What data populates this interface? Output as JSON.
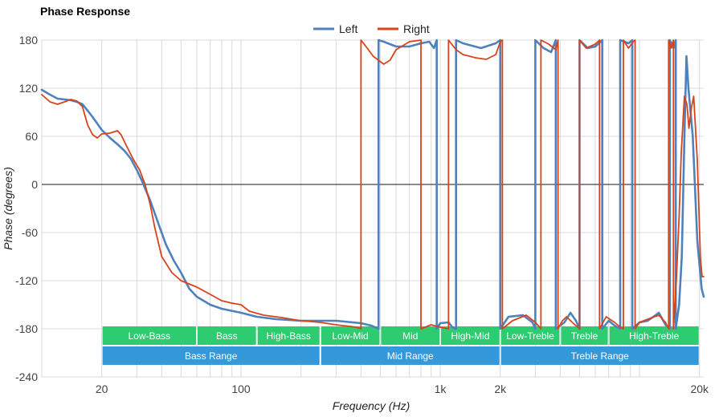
{
  "chart_data": {
    "type": "line",
    "title": "Phase Response",
    "xlabel": "Frequency (Hz)",
    "ylabel": "Phase (degrees)",
    "x_scale": "log",
    "xlim": [
      10,
      21000
    ],
    "ylim": [
      -240,
      180
    ],
    "grid": true,
    "legend_position": "top-center",
    "y_ticks": [
      180,
      120,
      60,
      0,
      -60,
      -120,
      -180,
      -240
    ],
    "x_tick_labels": [
      {
        "value": 20,
        "label": "20"
      },
      {
        "value": 100,
        "label": "100"
      },
      {
        "value": 1000,
        "label": "1k"
      },
      {
        "value": 2000,
        "label": "2k"
      },
      {
        "value": 20000,
        "label": "20k"
      }
    ],
    "series": [
      {
        "name": "Left",
        "color": "#4f81bd",
        "points": [
          [
            10,
            118
          ],
          [
            11,
            112
          ],
          [
            12,
            107
          ],
          [
            13,
            106
          ],
          [
            14,
            105
          ],
          [
            15,
            103
          ],
          [
            16,
            100
          ],
          [
            17,
            92
          ],
          [
            18,
            84
          ],
          [
            20,
            68
          ],
          [
            22,
            58
          ],
          [
            24,
            50
          ],
          [
            26,
            42
          ],
          [
            28,
            32
          ],
          [
            30,
            18
          ],
          [
            32,
            3
          ],
          [
            35,
            -20
          ],
          [
            38,
            -45
          ],
          [
            42,
            -75
          ],
          [
            46,
            -95
          ],
          [
            50,
            -110
          ],
          [
            55,
            -130
          ],
          [
            60,
            -140
          ],
          [
            70,
            -150
          ],
          [
            80,
            -155
          ],
          [
            100,
            -160
          ],
          [
            120,
            -165
          ],
          [
            150,
            -168
          ],
          [
            200,
            -170
          ],
          [
            250,
            -170
          ],
          [
            300,
            -170
          ],
          [
            400,
            -173
          ],
          [
            450,
            -176
          ],
          [
            490,
            -180
          ],
          [
            490,
            180
          ],
          [
            520,
            178
          ],
          [
            600,
            172
          ],
          [
            700,
            172
          ],
          [
            800,
            176
          ],
          [
            880,
            178
          ],
          [
            930,
            170
          ],
          [
            960,
            180
          ],
          [
            960,
            -180
          ],
          [
            1000,
            -173
          ],
          [
            1100,
            -172
          ],
          [
            1150,
            -178
          ],
          [
            1200,
            -180
          ],
          [
            1200,
            180
          ],
          [
            1300,
            176
          ],
          [
            1600,
            170
          ],
          [
            1900,
            176
          ],
          [
            2000,
            180
          ],
          [
            2000,
            -180
          ],
          [
            2200,
            -165
          ],
          [
            2600,
            -163
          ],
          [
            2900,
            -172
          ],
          [
            3000,
            -180
          ],
          [
            3000,
            180
          ],
          [
            3300,
            170
          ],
          [
            3600,
            165
          ],
          [
            3800,
            180
          ],
          [
            3800,
            -180
          ],
          [
            4200,
            -172
          ],
          [
            4500,
            -160
          ],
          [
            4800,
            -170
          ],
          [
            5000,
            -180
          ],
          [
            5000,
            180
          ],
          [
            5500,
            170
          ],
          [
            6000,
            172
          ],
          [
            6500,
            180
          ],
          [
            6500,
            -180
          ],
          [
            7000,
            -170
          ],
          [
            7500,
            -176
          ],
          [
            8000,
            -180
          ],
          [
            8000,
            180
          ],
          [
            8800,
            176
          ],
          [
            9200,
            180
          ],
          [
            9200,
            -180
          ],
          [
            10000,
            -172
          ],
          [
            11000,
            -170
          ],
          [
            12500,
            -160
          ],
          [
            13500,
            -175
          ],
          [
            14200,
            -180
          ],
          [
            14200,
            180
          ],
          [
            14800,
            170
          ],
          [
            15200,
            180
          ],
          [
            15200,
            -180
          ],
          [
            15800,
            -150
          ],
          [
            16300,
            -90
          ],
          [
            16800,
            60
          ],
          [
            17200,
            160
          ],
          [
            17600,
            120
          ],
          [
            18500,
            60
          ],
          [
            19500,
            -70
          ],
          [
            20500,
            -130
          ],
          [
            21000,
            -140
          ]
        ]
      },
      {
        "name": "Right",
        "color": "#d8431b",
        "points": [
          [
            10,
            112
          ],
          [
            11,
            103
          ],
          [
            12,
            100
          ],
          [
            13,
            103
          ],
          [
            14,
            106
          ],
          [
            15,
            104
          ],
          [
            16,
            97
          ],
          [
            17,
            74
          ],
          [
            18,
            62
          ],
          [
            19,
            58
          ],
          [
            20,
            63
          ],
          [
            22,
            64
          ],
          [
            24,
            67
          ],
          [
            25,
            62
          ],
          [
            27,
            45
          ],
          [
            29,
            30
          ],
          [
            31,
            18
          ],
          [
            33,
            0
          ],
          [
            35,
            -25
          ],
          [
            37,
            -55
          ],
          [
            40,
            -90
          ],
          [
            45,
            -110
          ],
          [
            50,
            -120
          ],
          [
            60,
            -128
          ],
          [
            70,
            -137
          ],
          [
            80,
            -145
          ],
          [
            90,
            -148
          ],
          [
            100,
            -150
          ],
          [
            110,
            -158
          ],
          [
            130,
            -163
          ],
          [
            160,
            -166
          ],
          [
            200,
            -170
          ],
          [
            250,
            -172
          ],
          [
            300,
            -175
          ],
          [
            380,
            -178
          ],
          [
            400,
            -180
          ],
          [
            400,
            180
          ],
          [
            430,
            170
          ],
          [
            460,
            160
          ],
          [
            520,
            150
          ],
          [
            560,
            155
          ],
          [
            600,
            168
          ],
          [
            700,
            178
          ],
          [
            800,
            180
          ],
          [
            800,
            -180
          ],
          [
            900,
            -175
          ],
          [
            1000,
            -178
          ],
          [
            1100,
            -180
          ],
          [
            1100,
            180
          ],
          [
            1200,
            168
          ],
          [
            1300,
            162
          ],
          [
            1500,
            158
          ],
          [
            1700,
            156
          ],
          [
            1900,
            162
          ],
          [
            2000,
            178
          ],
          [
            2050,
            180
          ],
          [
            2050,
            -180
          ],
          [
            2300,
            -170
          ],
          [
            2700,
            -163
          ],
          [
            3000,
            -172
          ],
          [
            3200,
            -180
          ],
          [
            3200,
            180
          ],
          [
            3500,
            175
          ],
          [
            3800,
            168
          ],
          [
            3900,
            180
          ],
          [
            3900,
            -180
          ],
          [
            4100,
            -170
          ],
          [
            4300,
            -165
          ],
          [
            4600,
            -172
          ],
          [
            5000,
            -180
          ],
          [
            5000,
            180
          ],
          [
            5400,
            170
          ],
          [
            6000,
            175
          ],
          [
            6300,
            180
          ],
          [
            6300,
            -180
          ],
          [
            6800,
            -165
          ],
          [
            7500,
            -172
          ],
          [
            8000,
            -178
          ],
          [
            8300,
            -180
          ],
          [
            8300,
            180
          ],
          [
            8800,
            170
          ],
          [
            9300,
            178
          ],
          [
            9500,
            180
          ],
          [
            9500,
            -180
          ],
          [
            10000,
            -172
          ],
          [
            11000,
            -168
          ],
          [
            12500,
            -163
          ],
          [
            13500,
            -172
          ],
          [
            14000,
            -180
          ],
          [
            14000,
            180
          ],
          [
            14400,
            170
          ],
          [
            14800,
            180
          ],
          [
            14800,
            -180
          ],
          [
            15300,
            -120
          ],
          [
            15800,
            -40
          ],
          [
            16200,
            40
          ],
          [
            16800,
            110
          ],
          [
            17300,
            100
          ],
          [
            17700,
            70
          ],
          [
            18200,
            95
          ],
          [
            18700,
            110
          ],
          [
            19500,
            30
          ],
          [
            20200,
            -90
          ],
          [
            20600,
            -115
          ],
          [
            21000,
            -115
          ]
        ]
      }
    ],
    "bands": [
      {
        "label": "Low-Bass",
        "start": 20,
        "end": 60,
        "color": "#2ecc71",
        "row": 1
      },
      {
        "label": "Bass",
        "start": 60,
        "end": 120,
        "color": "#2ecc71",
        "row": 1
      },
      {
        "label": "High-Bass",
        "start": 120,
        "end": 250,
        "color": "#2ecc71",
        "row": 1
      },
      {
        "label": "Low-Mid",
        "start": 250,
        "end": 500,
        "color": "#2ecc71",
        "row": 1
      },
      {
        "label": "Mid",
        "start": 500,
        "end": 1000,
        "color": "#2ecc71",
        "row": 1
      },
      {
        "label": "High-Mid",
        "start": 1000,
        "end": 2000,
        "color": "#2ecc71",
        "row": 1
      },
      {
        "label": "Low-Treble",
        "start": 2000,
        "end": 4000,
        "color": "#2ecc71",
        "row": 1
      },
      {
        "label": "Treble",
        "start": 4000,
        "end": 7000,
        "color": "#2ecc71",
        "row": 1
      },
      {
        "label": "High-Treble",
        "start": 7000,
        "end": 20000,
        "color": "#2ecc71",
        "row": 1
      },
      {
        "label": "Bass Range",
        "start": 20,
        "end": 250,
        "color": "#3498db",
        "row": 2
      },
      {
        "label": "Mid Range",
        "start": 250,
        "end": 2000,
        "color": "#3498db",
        "row": 2
      },
      {
        "label": "Treble Range",
        "start": 2000,
        "end": 20000,
        "color": "#3498db",
        "row": 2
      }
    ]
  }
}
